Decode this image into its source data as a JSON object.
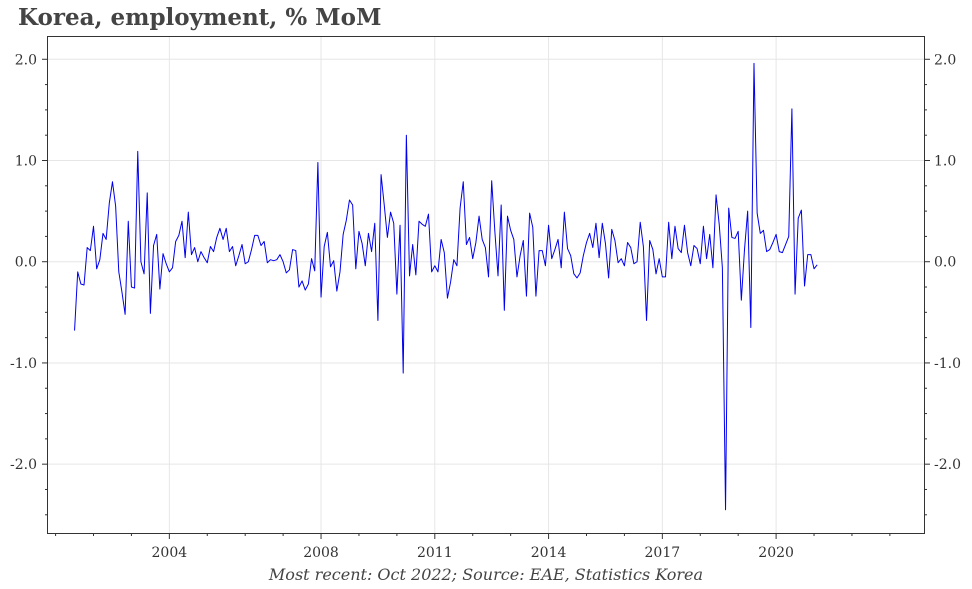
{
  "chart_data": {
    "type": "line",
    "title": "Korea, employment, % MoM",
    "caption": "Most recent: Oct 2022; Source: EAE, Statistics Korea",
    "xlabel": "",
    "ylabel": "",
    "xlim": [
      2000.8,
      2023.9
    ],
    "ylim": [
      -2.68,
      2.22
    ],
    "grid": true,
    "x_ticks": [
      {
        "value": 2004,
        "label": "2004"
      },
      {
        "value": 2008,
        "label": "2008"
      },
      {
        "value": 2011,
        "label": "2011"
      },
      {
        "value": 2014,
        "label": "2014"
      },
      {
        "value": 2017,
        "label": "2017"
      },
      {
        "value": 2020,
        "label": "2020"
      }
    ],
    "y_ticks": [
      {
        "value": 2.0,
        "label": "2.0"
      },
      {
        "value": 1.0,
        "label": "1.0"
      },
      {
        "value": 0.0,
        "label": "0.0"
      },
      {
        "value": -1.0,
        "label": "-1.0"
      },
      {
        "value": -2.0,
        "label": "-2.0"
      }
    ],
    "series": [
      {
        "color": "#0000ee",
        "start_year": 2001.5,
        "step": 0.0833333,
        "values": [
          -0.68,
          -0.1,
          -0.22,
          -0.23,
          0.14,
          0.11,
          0.35,
          -0.07,
          0.02,
          0.28,
          0.22,
          0.58,
          0.79,
          0.55,
          -0.1,
          -0.3,
          -0.52,
          0.4,
          -0.25,
          -0.26,
          1.09,
          0.0,
          -0.12,
          0.68,
          -0.51,
          0.16,
          0.27,
          -0.27,
          0.08,
          -0.02,
          -0.1,
          -0.06,
          0.2,
          0.26,
          0.4,
          0.04,
          0.49,
          0.07,
          0.14,
          0.0,
          0.1,
          0.04,
          -0.01,
          0.15,
          0.1,
          0.24,
          0.33,
          0.22,
          0.33,
          0.1,
          0.15,
          -0.04,
          0.06,
          0.17,
          -0.02,
          0.0,
          0.12,
          0.26,
          0.26,
          0.16,
          0.2,
          -0.01,
          0.02,
          0.01,
          0.02,
          0.07,
          0.0,
          -0.11,
          -0.08,
          0.12,
          0.11,
          -0.25,
          -0.19,
          -0.28,
          -0.22,
          0.03,
          -0.09,
          0.98,
          -0.35,
          0.15,
          0.29,
          -0.05,
          0.01,
          -0.29,
          -0.1,
          0.27,
          0.41,
          0.61,
          0.56,
          -0.07,
          0.3,
          0.18,
          -0.04,
          0.28,
          0.1,
          0.38,
          -0.58,
          0.86,
          0.56,
          0.24,
          0.49,
          0.38,
          -0.32,
          0.36,
          -1.1,
          1.25,
          -0.14,
          0.17,
          -0.13,
          0.4,
          0.37,
          0.35,
          0.47,
          -0.1,
          -0.04,
          -0.1,
          0.22,
          0.09,
          -0.36,
          -0.2,
          0.02,
          -0.04,
          0.53,
          0.79,
          0.17,
          0.24,
          0.03,
          0.19,
          0.45,
          0.22,
          0.14,
          -0.15,
          0.8,
          0.3,
          -0.14,
          0.56,
          -0.48,
          0.45,
          0.31,
          0.22,
          -0.15,
          0.06,
          0.21,
          -0.34,
          0.48,
          0.34,
          -0.34,
          0.11,
          0.11,
          -0.04,
          0.36,
          0.03,
          0.12,
          0.22,
          -0.06,
          0.49,
          0.13,
          0.06,
          -0.12,
          -0.16,
          -0.11,
          0.06,
          0.19,
          0.28,
          0.14,
          0.38,
          0.04,
          0.38,
          0.18,
          -0.16,
          0.32,
          0.21,
          -0.01,
          0.03,
          -0.04,
          0.19,
          0.14,
          -0.02,
          0.0,
          0.39,
          0.15,
          -0.58,
          0.21,
          0.12,
          -0.12,
          0.03,
          -0.15,
          -0.15,
          0.39,
          0.03,
          0.35,
          0.13,
          0.09,
          0.36,
          0.09,
          -0.04,
          0.16,
          0.13,
          -0.02,
          0.35,
          0.03,
          0.27,
          -0.06,
          0.66,
          0.37,
          -0.06,
          -2.45,
          0.53,
          0.24,
          0.23,
          0.3,
          -0.38,
          0.12,
          0.5,
          -0.65,
          1.96,
          0.48,
          0.28,
          0.31,
          0.1,
          0.12,
          0.19,
          0.27,
          0.1,
          0.09,
          0.17,
          0.25,
          1.51,
          -0.32,
          0.43,
          0.51,
          -0.24,
          0.07,
          0.07,
          -0.07,
          -0.03
        ]
      }
    ]
  }
}
